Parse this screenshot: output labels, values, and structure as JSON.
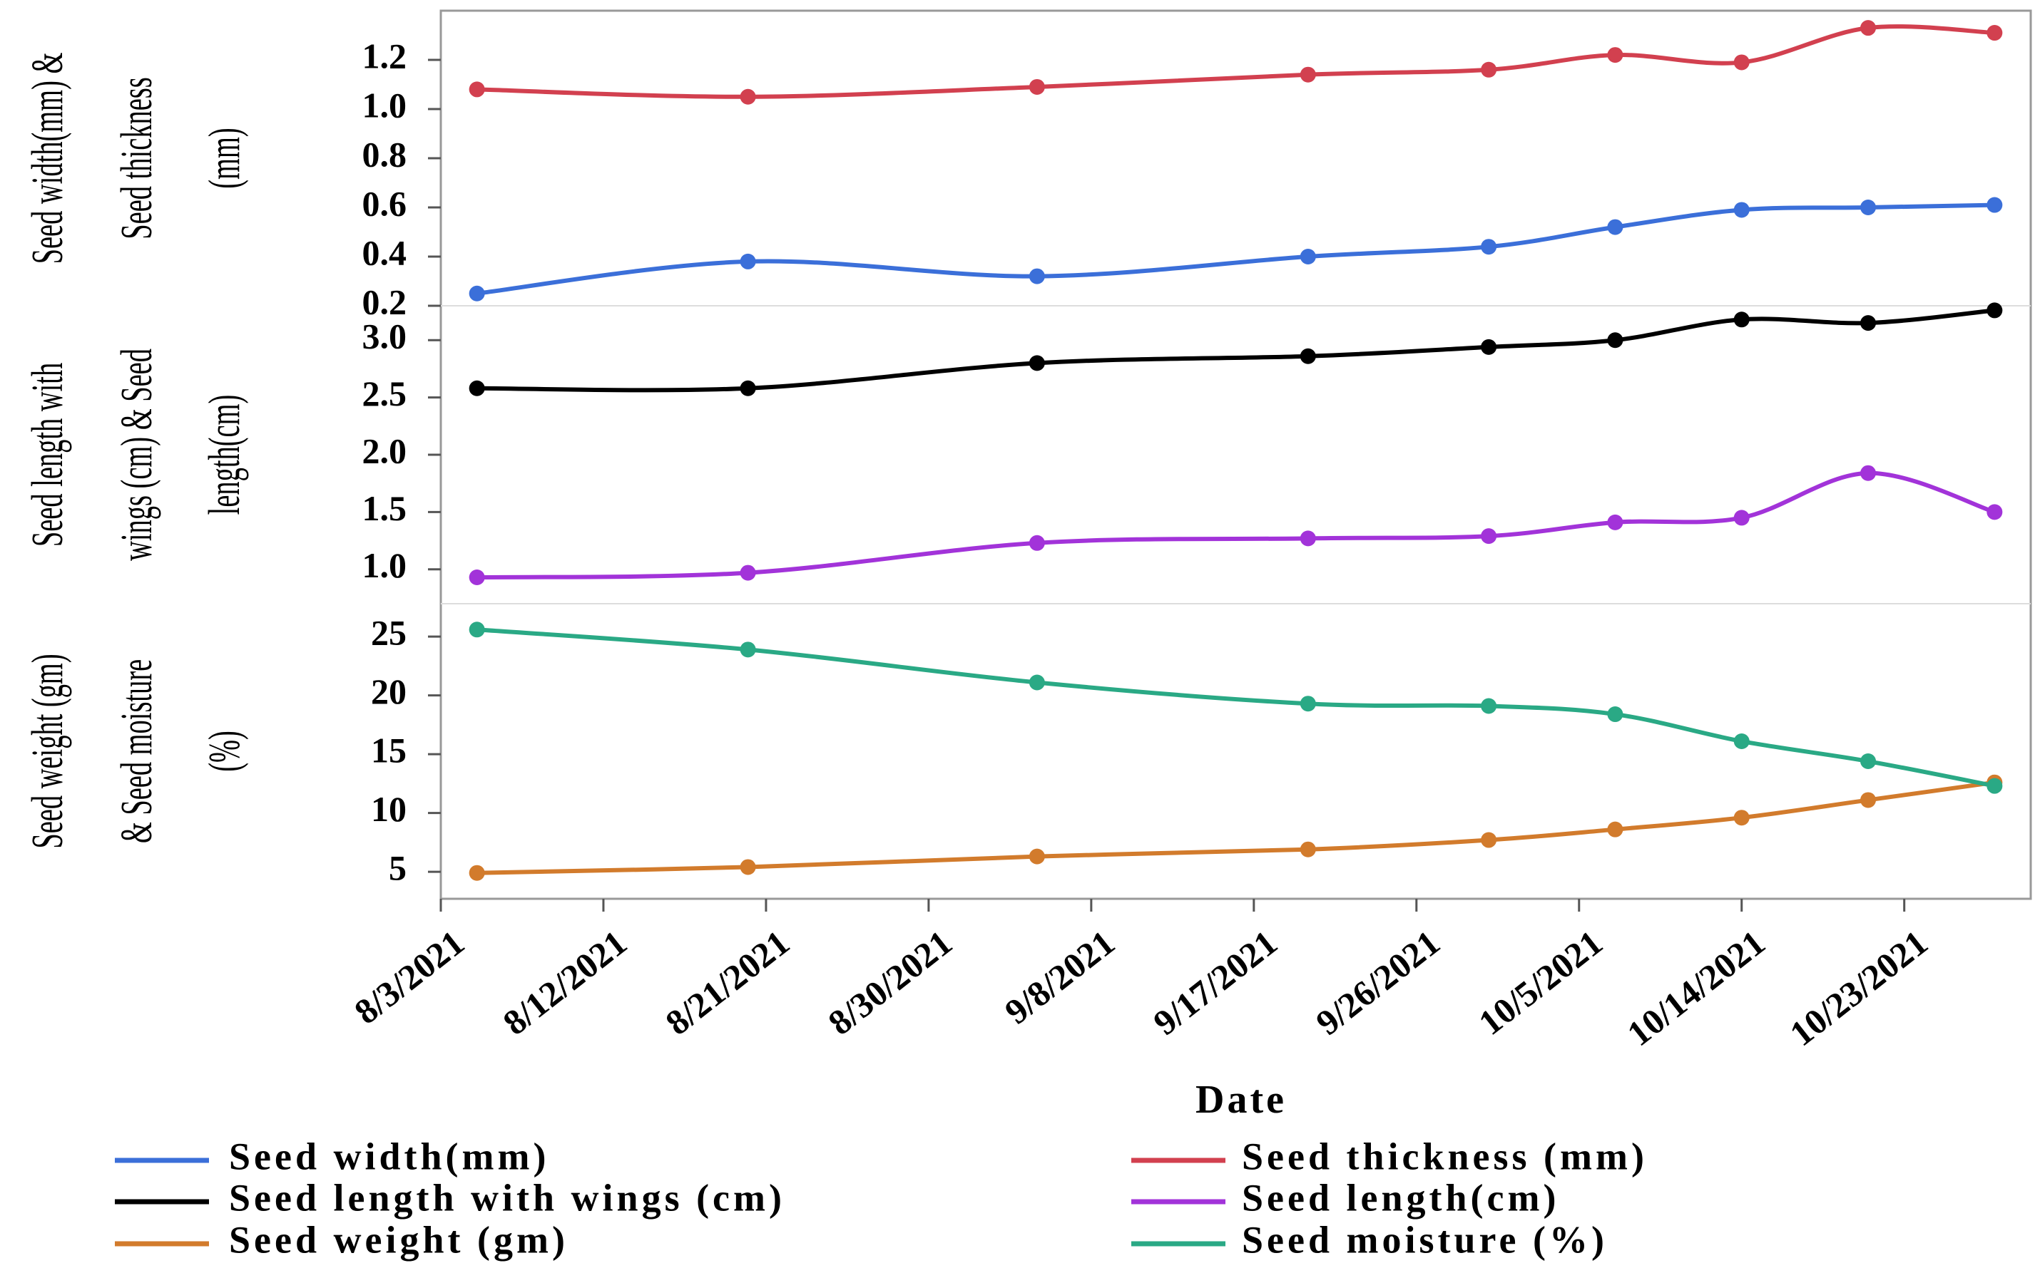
{
  "chart_data": {
    "type": "line",
    "xlabel": "Date",
    "x": [
      "8/5/2021",
      "8/20/2021",
      "9/5/2021",
      "9/20/2021",
      "9/30/2021",
      "10/7/2021",
      "10/14/2021",
      "10/21/2021",
      "10/28/2021"
    ],
    "xlim": [
      "8/3/2021",
      "10/30/2021"
    ],
    "xticks": [
      "8/3/2021",
      "8/12/2021",
      "8/21/2021",
      "8/30/2021",
      "9/8/2021",
      "9/17/2021",
      "9/26/2021",
      "10/5/2021",
      "10/14/2021",
      "10/23/2021"
    ],
    "panels": [
      {
        "ylabel": [
          "Seed width(mm) &",
          "Seed thickness",
          "(mm)"
        ],
        "ylim": [
          0.2,
          1.4
        ],
        "yticks": [
          0.2,
          0.4,
          0.6,
          0.8,
          {
            "value": 1,
            "label": "1.0"
          },
          1.2
        ],
        "series": [
          {
            "name": "Seed width(mm)",
            "color": "#3b6fd9",
            "values": [
              0.25,
              0.38,
              0.32,
              0.4,
              0.44,
              0.52,
              0.59,
              0.6,
              0.61
            ]
          },
          {
            "name": "Seed thickness (mm)",
            "color": "#d2404f",
            "values": [
              1.08,
              1.05,
              1.09,
              1.14,
              1.16,
              1.22,
              1.19,
              1.33,
              1.31
            ]
          }
        ]
      },
      {
        "ylabel": [
          "Seed length with",
          "wings (cm) & Seed",
          "length(cm)"
        ],
        "ylim": [
          0.7,
          3.3
        ],
        "yticks": [
          {
            "value": 1,
            "label": "1.0"
          },
          1.5,
          {
            "value": 2,
            "label": "2.0"
          },
          2.5,
          {
            "value": 3,
            "label": "3.0"
          }
        ],
        "series": [
          {
            "name": "Seed length with wings (cm)",
            "color": "#000000",
            "values": [
              2.58,
              2.58,
              2.8,
              2.86,
              2.94,
              3.0,
              3.18,
              3.15,
              3.26
            ]
          },
          {
            "name": "Seed length(cm)",
            "color": "#a233d9",
            "values": [
              0.93,
              0.97,
              1.23,
              1.27,
              1.29,
              1.41,
              1.45,
              1.84,
              1.5
            ]
          }
        ]
      },
      {
        "ylabel": [
          "Seed weight (gm)",
          "& Seed moisture",
          "(%)"
        ],
        "ylim": [
          2.7,
          27.8
        ],
        "yticks": [
          5,
          10,
          15,
          20,
          25
        ],
        "series": [
          {
            "name": "Seed weight (gm)",
            "color": "#d27b2c",
            "values": [
              4.9,
              5.4,
              6.3,
              6.9,
              7.7,
              8.6,
              9.6,
              11.1,
              12.6
            ]
          },
          {
            "name": "Seed moisture (%)",
            "color": "#2aa985",
            "values": [
              25.6,
              23.9,
              21.1,
              19.3,
              19.1,
              18.4,
              16.1,
              14.4,
              12.3
            ]
          }
        ]
      }
    ]
  }
}
